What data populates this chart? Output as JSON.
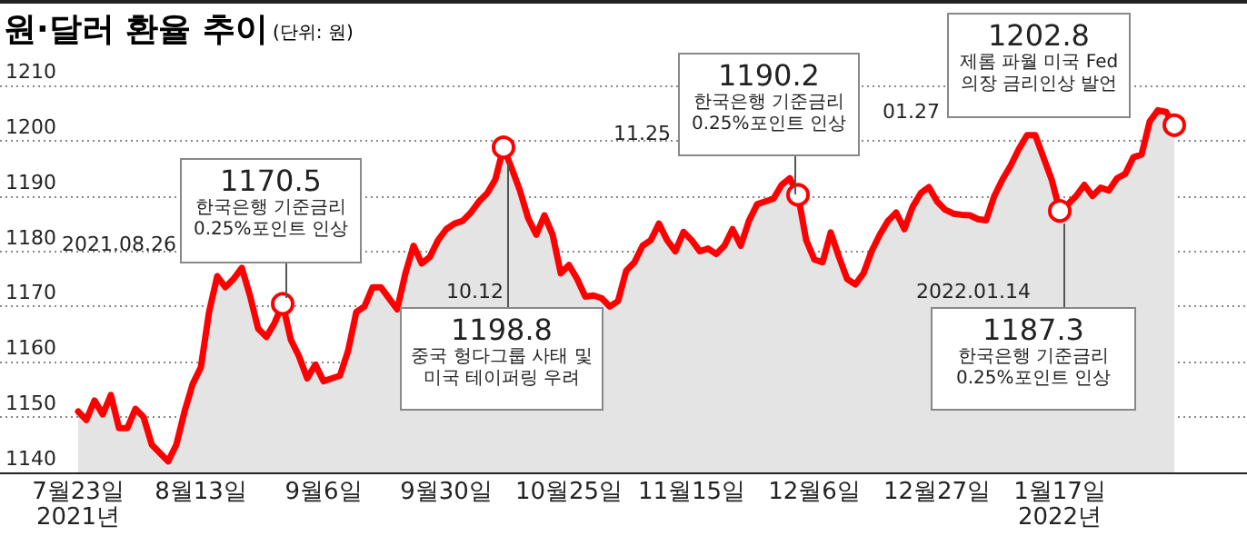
{
  "chart_data": {
    "type": "area",
    "title": "원·달러 환율 추이",
    "subtitle": "(단위: 원)",
    "categories": [
      "7월23일\n2021년",
      null,
      null,
      null,
      null,
      null,
      null,
      null,
      null,
      null,
      null,
      null,
      null,
      null,
      null,
      "8월13일",
      null,
      null,
      null,
      null,
      null,
      null,
      null,
      null,
      null,
      null,
      null,
      null,
      null,
      null,
      "9월6일",
      null,
      null,
      null,
      null,
      null,
      null,
      null,
      null,
      null,
      null,
      null,
      null,
      null,
      null,
      "9월30일",
      null,
      null,
      null,
      null,
      null,
      null,
      null,
      null,
      null,
      null,
      null,
      null,
      null,
      null,
      "10월25일",
      null,
      null,
      null,
      null,
      null,
      null,
      null,
      null,
      null,
      null,
      null,
      null,
      null,
      null,
      "11월15일",
      null,
      null,
      null,
      null,
      null,
      null,
      null,
      null,
      null,
      null,
      null,
      null,
      null,
      null,
      "12월6일",
      null,
      null,
      null,
      null,
      null,
      null,
      null,
      null,
      null,
      null,
      null,
      null,
      null,
      null,
      "12월27일",
      null,
      null,
      null,
      null,
      null,
      null,
      null,
      null,
      null,
      null,
      null,
      null,
      null,
      null,
      "1월17일\n2022년",
      null,
      null,
      null,
      null,
      null,
      null,
      null,
      null,
      null,
      null,
      null,
      null,
      null,
      null
    ],
    "series": [
      {
        "color": "#ff0000",
        "values": [
          1151,
          1149.5,
          1153,
          1150.5,
          1154,
          1148,
          1148,
          1151.5,
          1150,
          1145,
          1143.5,
          1142,
          1145,
          1151,
          1156,
          1159,
          1169,
          1175.5,
          1173.5,
          1175,
          1177,
          1172,
          1166,
          1164.5,
          1167,
          1170.5,
          1164,
          1161,
          1157,
          1159.5,
          1156.5,
          1157,
          1157.5,
          1162,
          1169,
          1170,
          1173.5,
          1173.5,
          1171.5,
          1169.5,
          1176,
          1181,
          1177.8,
          1179,
          1182,
          1184,
          1185,
          1185.5,
          1187,
          1189,
          1190.5,
          1193,
          1198.8,
          1195,
          1191,
          1186,
          1183,
          1186.5,
          1183,
          1176,
          1177.5,
          1175,
          1171.8,
          1172,
          1171.5,
          1170,
          1171,
          1176.5,
          1178,
          1181,
          1182,
          1185,
          1182,
          1180,
          1183.5,
          1182,
          1180,
          1180.5,
          1179.5,
          1181,
          1184,
          1181,
          1185.5,
          1188.5,
          1189,
          1189.5,
          1192,
          1193.2,
          1190.2,
          1182,
          1178.5,
          1178,
          1183.4,
          1179,
          1175,
          1174,
          1176,
          1180,
          1183,
          1185.5,
          1187,
          1184,
          1188,
          1190.5,
          1191.6,
          1189,
          1187.5,
          1186.8,
          1186.6,
          1186.5,
          1185.8,
          1185.6,
          1190,
          1193,
          1195.5,
          1198.5,
          1201,
          1201,
          1197,
          1193,
          1187.3,
          1188.5,
          1190,
          1192,
          1190,
          1191.5,
          1191,
          1193.2,
          1194,
          1197,
          1197.5,
          1203.5,
          1205.5,
          1205.2,
          1202.8
        ]
      }
    ],
    "ylim": [
      1140,
      1210
    ],
    "yticks": [
      1140,
      1150,
      1160,
      1170,
      1180,
      1190,
      1200,
      1210
    ],
    "grid": "y",
    "annotations": [
      "1170.5\n한국은행 기준금리\n0.25%포인트 인상",
      "2021.08.26",
      "1198.8\n중국 헝다그룹 사태 및\n미국 테이퍼링 우려",
      "10.12",
      "1190.2\n한국은행 기준금리\n0.25%포인트 인상",
      "11.25",
      "1202.8\n제롬 파월 미국 Fed\n의장 금리인상 발언",
      "01.27",
      "1187.3\n한국은행 기준금리\n0.25%포인트 인상",
      "2022.01.14"
    ]
  }
}
